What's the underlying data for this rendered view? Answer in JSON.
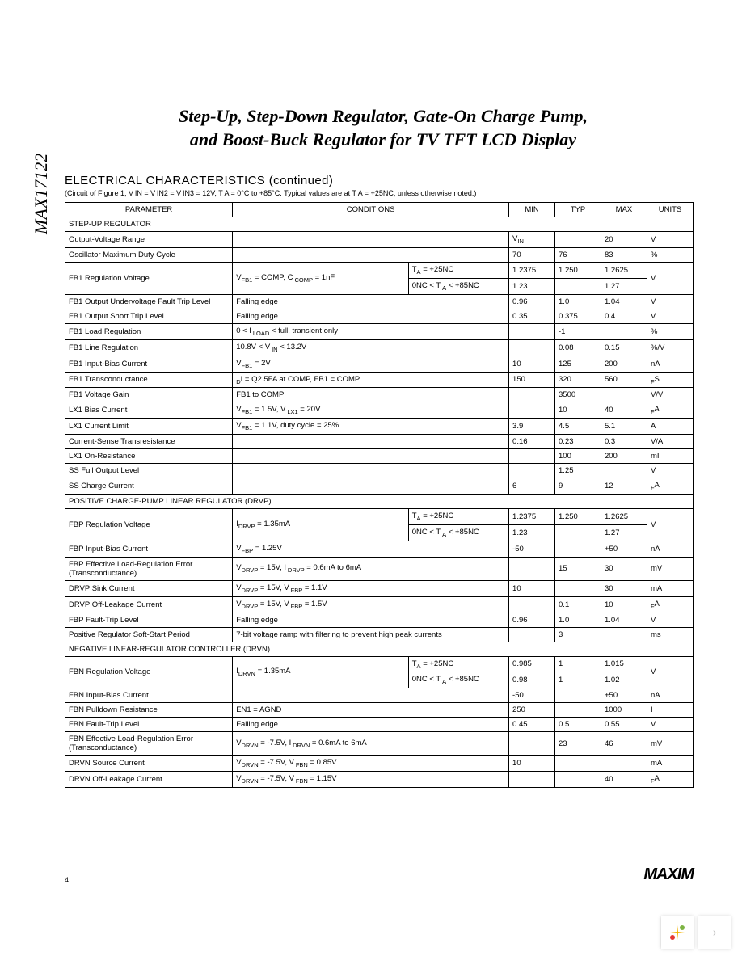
{
  "part_number": "MAX17122",
  "title_line1": "Step-Up, Step-Down Regulator, Gate-On Charge Pump,",
  "title_line2": "and Boost-Buck Regulator for TV TFT LCD Display",
  "section_title": "ELECTRICAL CHARACTERISTICS (continued)",
  "section_note": "(Circuit of Figure 1, V IN = V IN2 = V IN3 = 12V, T A = 0°C to +85°C. Typical values are at T A = +25NC, unless otherwise noted.)",
  "headers": {
    "parameter": "PARAMETER",
    "conditions": "CONDITIONS",
    "min": "MIN",
    "typ": "TYP",
    "max": "MAX",
    "units": "UNITS"
  },
  "groups": [
    {
      "title": "STEP-UP REGULATOR",
      "rows": [
        {
          "param": "Output-Voltage Range",
          "cond": "",
          "min": "V<sub>IN</sub>",
          "typ": "",
          "max": "20",
          "unit": "V"
        },
        {
          "param": "Oscillator Maximum Duty Cycle",
          "cond": "",
          "min": "70",
          "typ": "76",
          "max": "83",
          "unit": "%"
        },
        {
          "param": "FB1 Regulation Voltage",
          "cond": "V<sub>FB1</sub> = COMP, C <sub>COMP</sub> = 1nF",
          "subrows": [
            {
              "c2": "T<sub>A</sub> = +25NC",
              "min": "1.2375",
              "typ": "1.250",
              "max": "1.2625"
            },
            {
              "c2": "0NC < T <sub>A</sub> < +85NC",
              "min": "1.23",
              "typ": "",
              "max": "1.27"
            }
          ],
          "unit": "V"
        },
        {
          "param": "FB1 Output Undervoltage Fault Trip Level",
          "cond": "Falling edge",
          "min": "0.96",
          "typ": "1.0",
          "max": "1.04",
          "unit": "V"
        },
        {
          "param": "FB1 Output Short Trip Level",
          "cond": "Falling edge",
          "min": "0.35",
          "typ": "0.375",
          "max": "0.4",
          "unit": "V"
        },
        {
          "param": "FB1 Load Regulation",
          "cond": "0 < I <sub>LOAD</sub> < full, transient only",
          "min": "",
          "typ": "-1",
          "max": "",
          "unit": "%"
        },
        {
          "param": "FB1 Line Regulation",
          "cond": "10.8V < V <sub>IN</sub> < 13.2V",
          "min": "",
          "typ": "0.08",
          "max": "0.15",
          "unit": "%/V"
        },
        {
          "param": "FB1 Input-Bias Current",
          "cond": "V<sub>FB1</sub> = 2V",
          "min": "10",
          "typ": "125",
          "max": "200",
          "unit": "nA"
        },
        {
          "param": "FB1 Transconductance",
          "cond": "<sub>D</sub>I = Q2.5FA at COMP, FB1 = COMP",
          "min": "150",
          "typ": "320",
          "max": "560",
          "unit": "<sub>F</sub>S"
        },
        {
          "param": "FB1 Voltage Gain",
          "cond": "FB1 to COMP",
          "min": "",
          "typ": "3500",
          "max": "",
          "unit": "V/V"
        },
        {
          "param": "LX1 Bias Current",
          "cond": "V<sub>FB1</sub> = 1.5V, V <sub>LX1</sub> = 20V",
          "min": "",
          "typ": "10",
          "max": "40",
          "unit": "<sub>F</sub>A"
        },
        {
          "param": "LX1 Current Limit",
          "cond": "V<sub>FB1</sub> = 1.1V, duty cycle = 25%",
          "min": "3.9",
          "typ": "4.5",
          "max": "5.1",
          "unit": "A"
        },
        {
          "param": "Current-Sense Transresistance",
          "cond": "",
          "min": "0.16",
          "typ": "0.23",
          "max": "0.3",
          "unit": "V/A"
        },
        {
          "param": "LX1 On-Resistance",
          "cond": "",
          "min": "",
          "typ": "100",
          "max": "200",
          "unit": "mI"
        },
        {
          "param": "SS Full Output Level",
          "cond": "",
          "min": "",
          "typ": "1.25",
          "max": "",
          "unit": "V"
        },
        {
          "param": "SS Charge Current",
          "cond": "",
          "min": "6",
          "typ": "9",
          "max": "12",
          "unit": "<sub>F</sub>A"
        }
      ]
    },
    {
      "title": "POSITIVE CHARGE-PUMP LINEAR REGULATOR (DRVP)",
      "rows": [
        {
          "param": "FBP Regulation Voltage",
          "cond": "I<sub>DRVP</sub> = 1.35mA",
          "subrows": [
            {
              "c2": "T<sub>A</sub> = +25NC",
              "min": "1.2375",
              "typ": "1.250",
              "max": "1.2625"
            },
            {
              "c2": "0NC < T <sub>A</sub> < +85NC",
              "min": "1.23",
              "typ": "",
              "max": "1.27"
            }
          ],
          "unit": "V"
        },
        {
          "param": "FBP Input-Bias Current",
          "cond": "V<sub>FBP</sub> = 1.25V",
          "min": "-50",
          "typ": "",
          "max": "+50",
          "unit": "nA"
        },
        {
          "param": "FBP Effective Load-Regulation Error (Transconductance)",
          "cond": "V<sub>DRVP</sub> = 15V, I <sub>DRVP</sub> = 0.6mA to 6mA",
          "min": "",
          "typ": "15",
          "max": "30",
          "unit": "mV"
        },
        {
          "param": "DRVP Sink Current",
          "cond": "V<sub>DRVP</sub> = 15V, V <sub>FBP</sub> = 1.1V",
          "min": "10",
          "typ": "",
          "max": "30",
          "unit": "mA"
        },
        {
          "param": "DRVP Off-Leakage Current",
          "cond": "V<sub>DRVP</sub> = 15V, V <sub>FBP</sub> = 1.5V",
          "min": "",
          "typ": "0.1",
          "max": "10",
          "unit": "<sub>F</sub>A"
        },
        {
          "param": "FBP Fault-Trip Level",
          "cond": "Falling edge",
          "min": "0.96",
          "typ": "1.0",
          "max": "1.04",
          "unit": "V"
        },
        {
          "param": "Positive Regulator Soft-Start Period",
          "cond": "7-bit voltage ramp with filtering to prevent high peak currents",
          "min": "",
          "typ": "3",
          "max": "",
          "unit": "ms"
        }
      ]
    },
    {
      "title": "NEGATIVE LINEAR-REGULATOR CONTROLLER (DRVN)",
      "rows": [
        {
          "param": "FBN Regulation Voltage",
          "cond": "I<sub>DRVN</sub> = 1.35mA",
          "subrows": [
            {
              "c2": "T<sub>A</sub> = +25NC",
              "min": "0.985",
              "typ": "1",
              "max": "1.015"
            },
            {
              "c2": "0NC < T <sub>A</sub> < +85NC",
              "min": "0.98",
              "typ": "1",
              "max": "1.02"
            }
          ],
          "unit": "V"
        },
        {
          "param": "FBN Input-Bias Current",
          "cond": "",
          "min": "-50",
          "typ": "",
          "max": "+50",
          "unit": "nA"
        },
        {
          "param": "FBN Pulldown Resistance",
          "cond": "EN1 = AGND",
          "min": "250",
          "typ": "",
          "max": "1000",
          "unit": "I"
        },
        {
          "param": "FBN Fault-Trip Level",
          "cond": "Falling edge",
          "min": "0.45",
          "typ": "0.5",
          "max": "0.55",
          "unit": "V"
        },
        {
          "param": "FBN Effective Load-Regulation Error (Transconductance)",
          "cond": "V<sub>DRVN</sub> = -7.5V, I <sub>DRVN</sub> = 0.6mA to 6mA",
          "min": "",
          "typ": "23",
          "max": "46",
          "unit": "mV"
        },
        {
          "param": "DRVN Source Current",
          "cond": "V<sub>DRVN</sub> = -7.5V, V <sub>FBN</sub> = 0.85V",
          "min": "10",
          "typ": "",
          "max": "",
          "unit": "mA"
        },
        {
          "param": "DRVN Off-Leakage Current",
          "cond": "V<sub>DRVN</sub> = -7.5V, V <sub>FBN</sub> = 1.15V",
          "min": "",
          "typ": "",
          "max": "40",
          "unit": "<sub>F</sub>A"
        }
      ]
    }
  ],
  "page_number": "4",
  "logo_text": "MAXIM",
  "arrow_glyph": "›"
}
